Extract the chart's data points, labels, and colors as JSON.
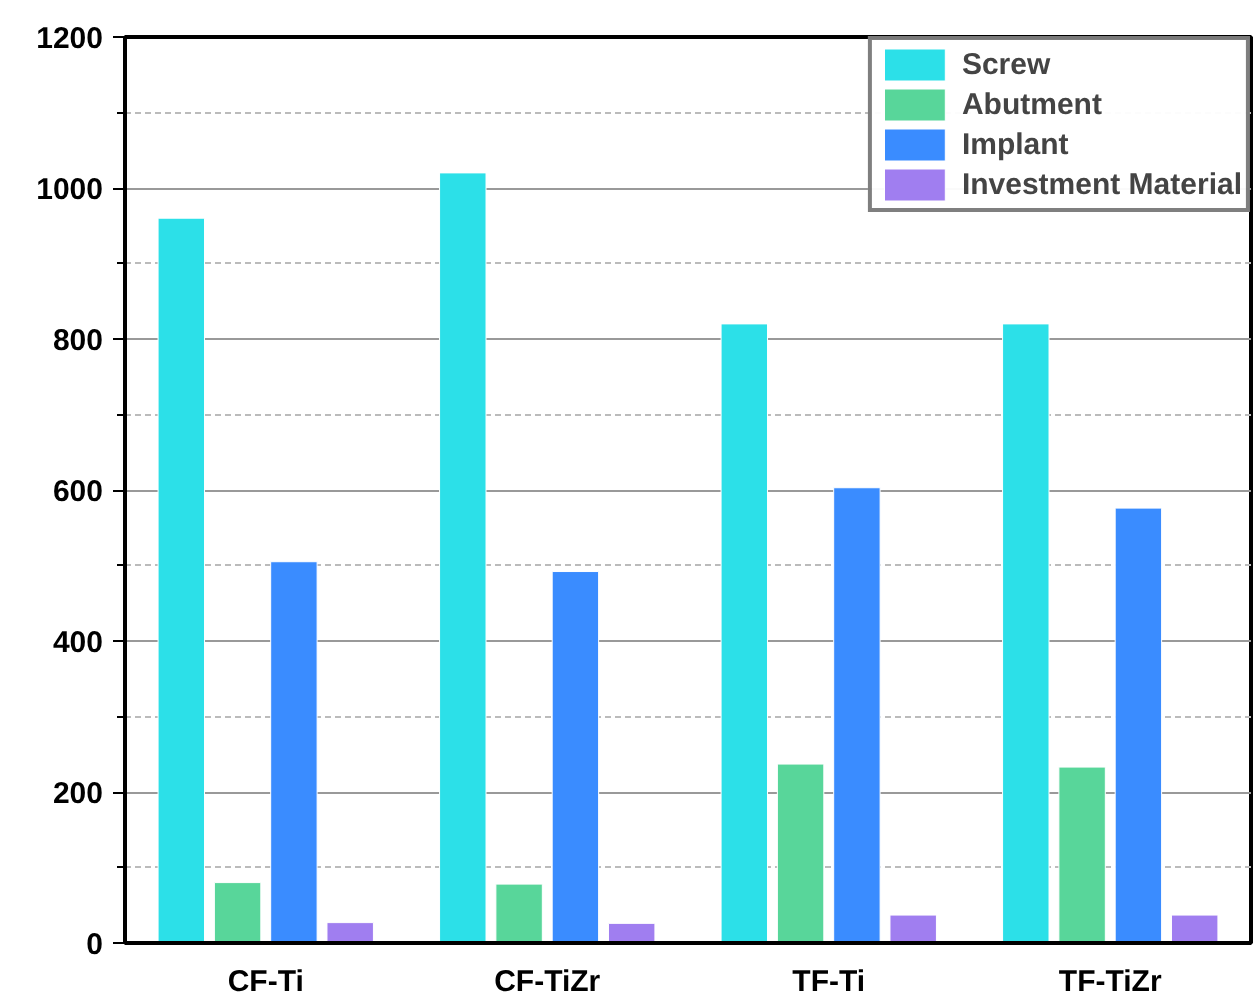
{
  "chart_data": {
    "type": "bar",
    "categories": [
      "CF-Ti",
      "CF-TiZr",
      "TF-Ti",
      "TF-TiZr"
    ],
    "series": [
      {
        "name": "Screw",
        "color": "#2ce0e8",
        "values": [
          960,
          1020,
          820,
          820
        ]
      },
      {
        "name": "Abutment",
        "color": "#58d69a",
        "values": [
          80,
          78,
          237,
          233
        ]
      },
      {
        "name": "Implant",
        "color": "#3a8cff",
        "values": [
          505,
          492,
          603,
          576
        ]
      },
      {
        "name": "Investment Material",
        "color": "#a07ef0",
        "values": [
          27,
          26,
          37,
          37
        ]
      }
    ],
    "ylim": [
      0,
      1200
    ],
    "yticks": [
      0,
      200,
      400,
      600,
      800,
      1000,
      1200
    ],
    "grid": "y",
    "legend": "top right"
  }
}
